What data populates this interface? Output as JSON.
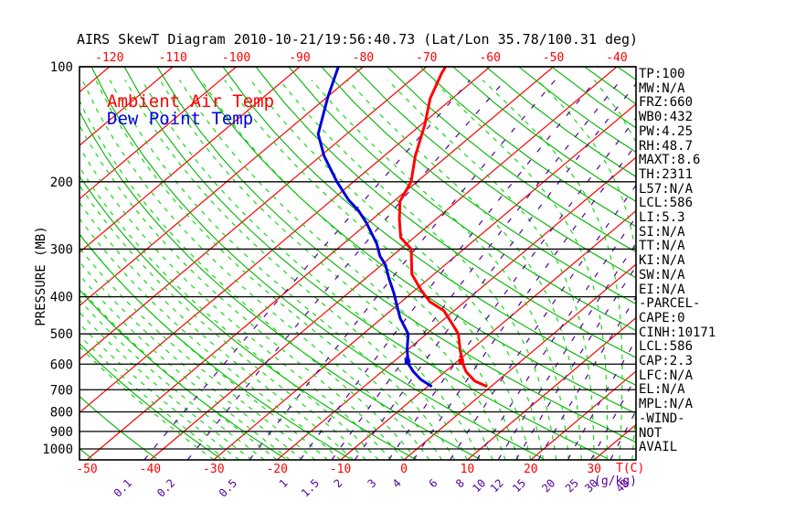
{
  "title": "AIRS SkewT Diagram 2010-10-21/19:56:40.73 (Lat/Lon 35.78/100.31 deg)",
  "legend": {
    "ambient": "Ambient Air Temp",
    "dewpoint": "Dew Point Temp"
  },
  "axes": {
    "pressure_label": "PRESSURE (MB)",
    "pressure_ticks": [
      100,
      200,
      300,
      400,
      500,
      600,
      700,
      800,
      900,
      1000
    ],
    "top_temp_labels": [
      -120,
      -110,
      -100,
      -90,
      -80,
      -70,
      -60,
      -50,
      -40
    ],
    "bottom_temp_labels": [
      -50,
      -40,
      -30,
      -20,
      -10,
      0,
      10,
      20,
      30
    ],
    "temp_unit": "T(C)",
    "mixing_labels": [
      0.1,
      0.2,
      0.5,
      1,
      1.5,
      2,
      3,
      4,
      6,
      8,
      10,
      12,
      15,
      20,
      25,
      30,
      40
    ],
    "mixing_unit": "(g/kg)"
  },
  "right_panel": {
    "items": [
      "TP:100",
      "MW:N/A",
      "FRZ:660",
      "WB0:432",
      "PW:4.25",
      "RH:48.7",
      "MAXT:8.6",
      "TH:2311",
      "L57:N/A",
      "LCL:586",
      "LI:5.3",
      "SI:N/A",
      "TT:N/A",
      "KI:N/A",
      "SW:N/A",
      "EI:N/A",
      "-PARCEL-",
      "CAPE:0",
      "CINH:10171",
      "LCL:586",
      "CAP:2.3",
      "LFC:N/A",
      "EL:N/A",
      "MPL:N/A",
      "-WIND-",
      "NOT",
      "AVAIL"
    ]
  },
  "colors": {
    "isotherm": "#ff0000",
    "dry_adiabat": "#00b400",
    "moist_adiabat": "#00d800",
    "mixing_ratio": "#550099",
    "pressure_line": "#000000",
    "frame": "#000000",
    "temperature": "#ff0000",
    "dewpoint": "#0000dd",
    "label_red": "#ff0000",
    "label_purple": "#550099",
    "label_black": "#000000"
  },
  "chart_data": {
    "type": "line",
    "title": "AIRS SkewT Diagram 2010-10-21/19:56:40.73 (Lat/Lon 35.78/100.31 deg)",
    "xlabel": "Temperature (C), skewed",
    "ylabel": "Pressure (MB), log scale",
    "y_range_mb": [
      100,
      1068
    ],
    "x_range_surface_c": [
      -51,
      36.5
    ],
    "grid": {
      "isotherms_c": {
        "min": -130,
        "max": 40,
        "step": 10
      },
      "dry_adiabats_k": {
        "min": 220,
        "max": 450,
        "step": 10
      },
      "moist_adiabats_surface_c": {
        "min": -30,
        "max": 40,
        "step": 2
      },
      "mixing_ratio_g_kg": [
        0.1,
        0.2,
        0.5,
        1,
        1.5,
        2,
        3,
        4,
        6,
        8,
        10,
        12,
        15,
        20,
        25,
        30,
        40
      ]
    },
    "series": [
      {
        "name": "Ambient Air Temp",
        "points_p_t": [
          [
            687,
            -0.6
          ],
          [
            664,
            -3.6
          ],
          [
            628,
            -6.7
          ],
          [
            600,
            -8.6
          ],
          [
            551,
            -11.7
          ],
          [
            500,
            -15.0
          ],
          [
            472,
            -17.7
          ],
          [
            435,
            -21.6
          ],
          [
            412,
            -25.5
          ],
          [
            383,
            -29.2
          ],
          [
            349,
            -33.5
          ],
          [
            300,
            -38.3
          ],
          [
            280,
            -42.1
          ],
          [
            251,
            -45.7
          ],
          [
            225,
            -49.0
          ],
          [
            200,
            -50.9
          ],
          [
            171,
            -55.1
          ],
          [
            142,
            -59.4
          ],
          [
            121,
            -63.5
          ],
          [
            104,
            -66.4
          ],
          [
            100,
            -67.0
          ]
        ]
      },
      {
        "name": "Dew Point Temp",
        "points_p_t": [
          [
            687,
            -9.3
          ],
          [
            658,
            -12.4
          ],
          [
            628,
            -15.0
          ],
          [
            600,
            -17.2
          ],
          [
            552,
            -20.0
          ],
          [
            500,
            -22.9
          ],
          [
            455,
            -27.1
          ],
          [
            390,
            -32.9
          ],
          [
            359,
            -36.2
          ],
          [
            330,
            -39.4
          ],
          [
            313,
            -41.9
          ],
          [
            290,
            -44.8
          ],
          [
            256,
            -50.3
          ],
          [
            237,
            -54.0
          ],
          [
            223,
            -57.4
          ],
          [
            200,
            -62.6
          ],
          [
            171,
            -69.5
          ],
          [
            150,
            -74.5
          ],
          [
            120,
            -79.9
          ],
          [
            100,
            -83.9
          ]
        ]
      }
    ],
    "markers": [
      {
        "series": 0,
        "p": 590,
        "t": -9.4,
        "label": "LCL"
      },
      {
        "series": 1,
        "p": 590,
        "t": -17.9,
        "label": "LCL"
      }
    ]
  }
}
